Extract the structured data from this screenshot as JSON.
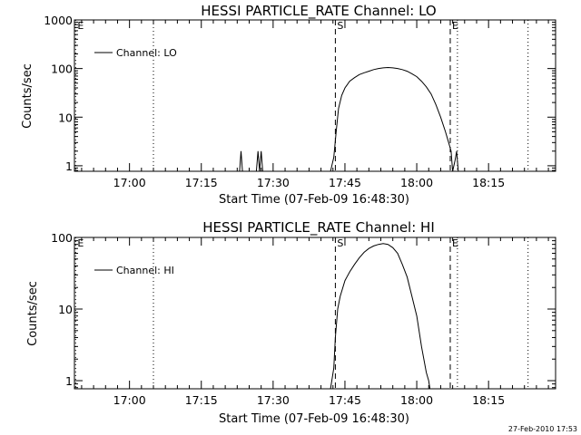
{
  "chart_data": [
    {
      "type": "line",
      "title": "HESSI PARTICLE_RATE Channel: LO",
      "xlabel": "Start Time (07-Feb-09 16:48:30)",
      "ylabel": "Counts/sec",
      "ylabels": [
        "1",
        "10",
        "100",
        "1000"
      ],
      "y_scale": "log",
      "ylim": [
        0.77,
        1000
      ],
      "xlim": [
        "16:48:30",
        "18:29:00"
      ],
      "xticks": [
        "17:00",
        "17:15",
        "17:30",
        "17:45",
        "18:00",
        "18:15"
      ],
      "legend": {
        "position": "top-left",
        "entries": [
          "Channel: LO"
        ]
      },
      "event_markers": [
        {
          "label": "E",
          "time": "16:48:45",
          "style": "dotted"
        },
        {
          "time": "17:05:00",
          "style": "dotted"
        },
        {
          "label": "S",
          "time": "17:43:00",
          "style": "dashed"
        },
        {
          "label": "E",
          "time": "18:07:00",
          "style": "dashed"
        },
        {
          "time": "18:08:30",
          "style": "dotted"
        },
        {
          "time": "18:23:15",
          "style": "dotted"
        }
      ],
      "series": [
        {
          "name": "Channel: LO",
          "x": [
            "17:23:00",
            "17:23:18",
            "17:23:36",
            "17:26:30",
            "17:26:50",
            "17:27:10",
            "17:27:30",
            "17:27:50",
            "17:42:00",
            "17:42:40",
            "17:43:10",
            "17:43:40",
            "17:44:20",
            "17:45:00",
            "17:46:00",
            "17:47:00",
            "17:48:00",
            "17:49:00",
            "17:50:00",
            "17:51:00",
            "17:52:00",
            "17:53:00",
            "17:54:00",
            "17:55:00",
            "17:56:00",
            "17:57:00",
            "17:58:00",
            "17:59:00",
            "18:00:00",
            "18:01:00",
            "18:02:00",
            "18:03:00",
            "18:04:00",
            "18:05:00",
            "18:06:00",
            "18:06:40",
            "18:07:10",
            "18:07:30",
            "18:08:00",
            "18:08:20",
            "18:08:40"
          ],
          "y": [
            0.77,
            2,
            0.77,
            0.77,
            2,
            0.77,
            2,
            0.77,
            0.77,
            1.5,
            5,
            15,
            28,
            40,
            55,
            65,
            75,
            82,
            88,
            95,
            100,
            103,
            105,
            103,
            100,
            95,
            88,
            78,
            68,
            55,
            42,
            30,
            18,
            10,
            5,
            3,
            2,
            0.77,
            1.3,
            2,
            0.77
          ]
        }
      ]
    },
    {
      "type": "line",
      "title": "HESSI PARTICLE_RATE Channel: HI",
      "xlabel": "Start Time (07-Feb-09 16:48:30)",
      "ylabel": "Counts/sec",
      "ylabels": [
        "1",
        "10",
        "100"
      ],
      "y_scale": "log",
      "ylim": [
        0.77,
        100
      ],
      "xlim": [
        "16:48:30",
        "18:29:00"
      ],
      "xticks": [
        "17:00",
        "17:15",
        "17:30",
        "17:45",
        "18:00",
        "18:15"
      ],
      "legend": {
        "position": "top-left",
        "entries": [
          "Channel: HI"
        ]
      },
      "event_markers": [
        {
          "label": "E",
          "time": "16:48:45",
          "style": "dotted"
        },
        {
          "time": "17:05:00",
          "style": "dotted"
        },
        {
          "label": "S",
          "time": "17:43:00",
          "style": "dashed"
        },
        {
          "label": "E",
          "time": "18:07:00",
          "style": "dashed"
        },
        {
          "time": "18:08:30",
          "style": "dotted"
        },
        {
          "time": "18:23:15",
          "style": "dotted"
        }
      ],
      "series": [
        {
          "name": "Channel: HI",
          "x": [
            "17:42:00",
            "17:42:40",
            "17:43:00",
            "17:43:30",
            "17:44:00",
            "17:45:00",
            "17:46:00",
            "17:47:00",
            "17:48:00",
            "17:49:00",
            "17:50:00",
            "17:51:00",
            "17:52:00",
            "17:53:00",
            "17:54:00",
            "17:55:00",
            "17:56:00",
            "17:57:00",
            "17:58:00",
            "17:59:00",
            "18:00:00",
            "18:01:00",
            "18:02:00",
            "18:02:30",
            "18:02:45"
          ],
          "y": [
            0.77,
            1.5,
            4,
            10,
            15,
            25,
            33,
            42,
            52,
            62,
            70,
            76,
            80,
            82,
            80,
            72,
            60,
            42,
            28,
            15,
            8,
            3,
            1.3,
            1,
            0.77
          ]
        }
      ]
    }
  ],
  "footer": {
    "timestamp": "27-Feb-2010 17:53"
  }
}
